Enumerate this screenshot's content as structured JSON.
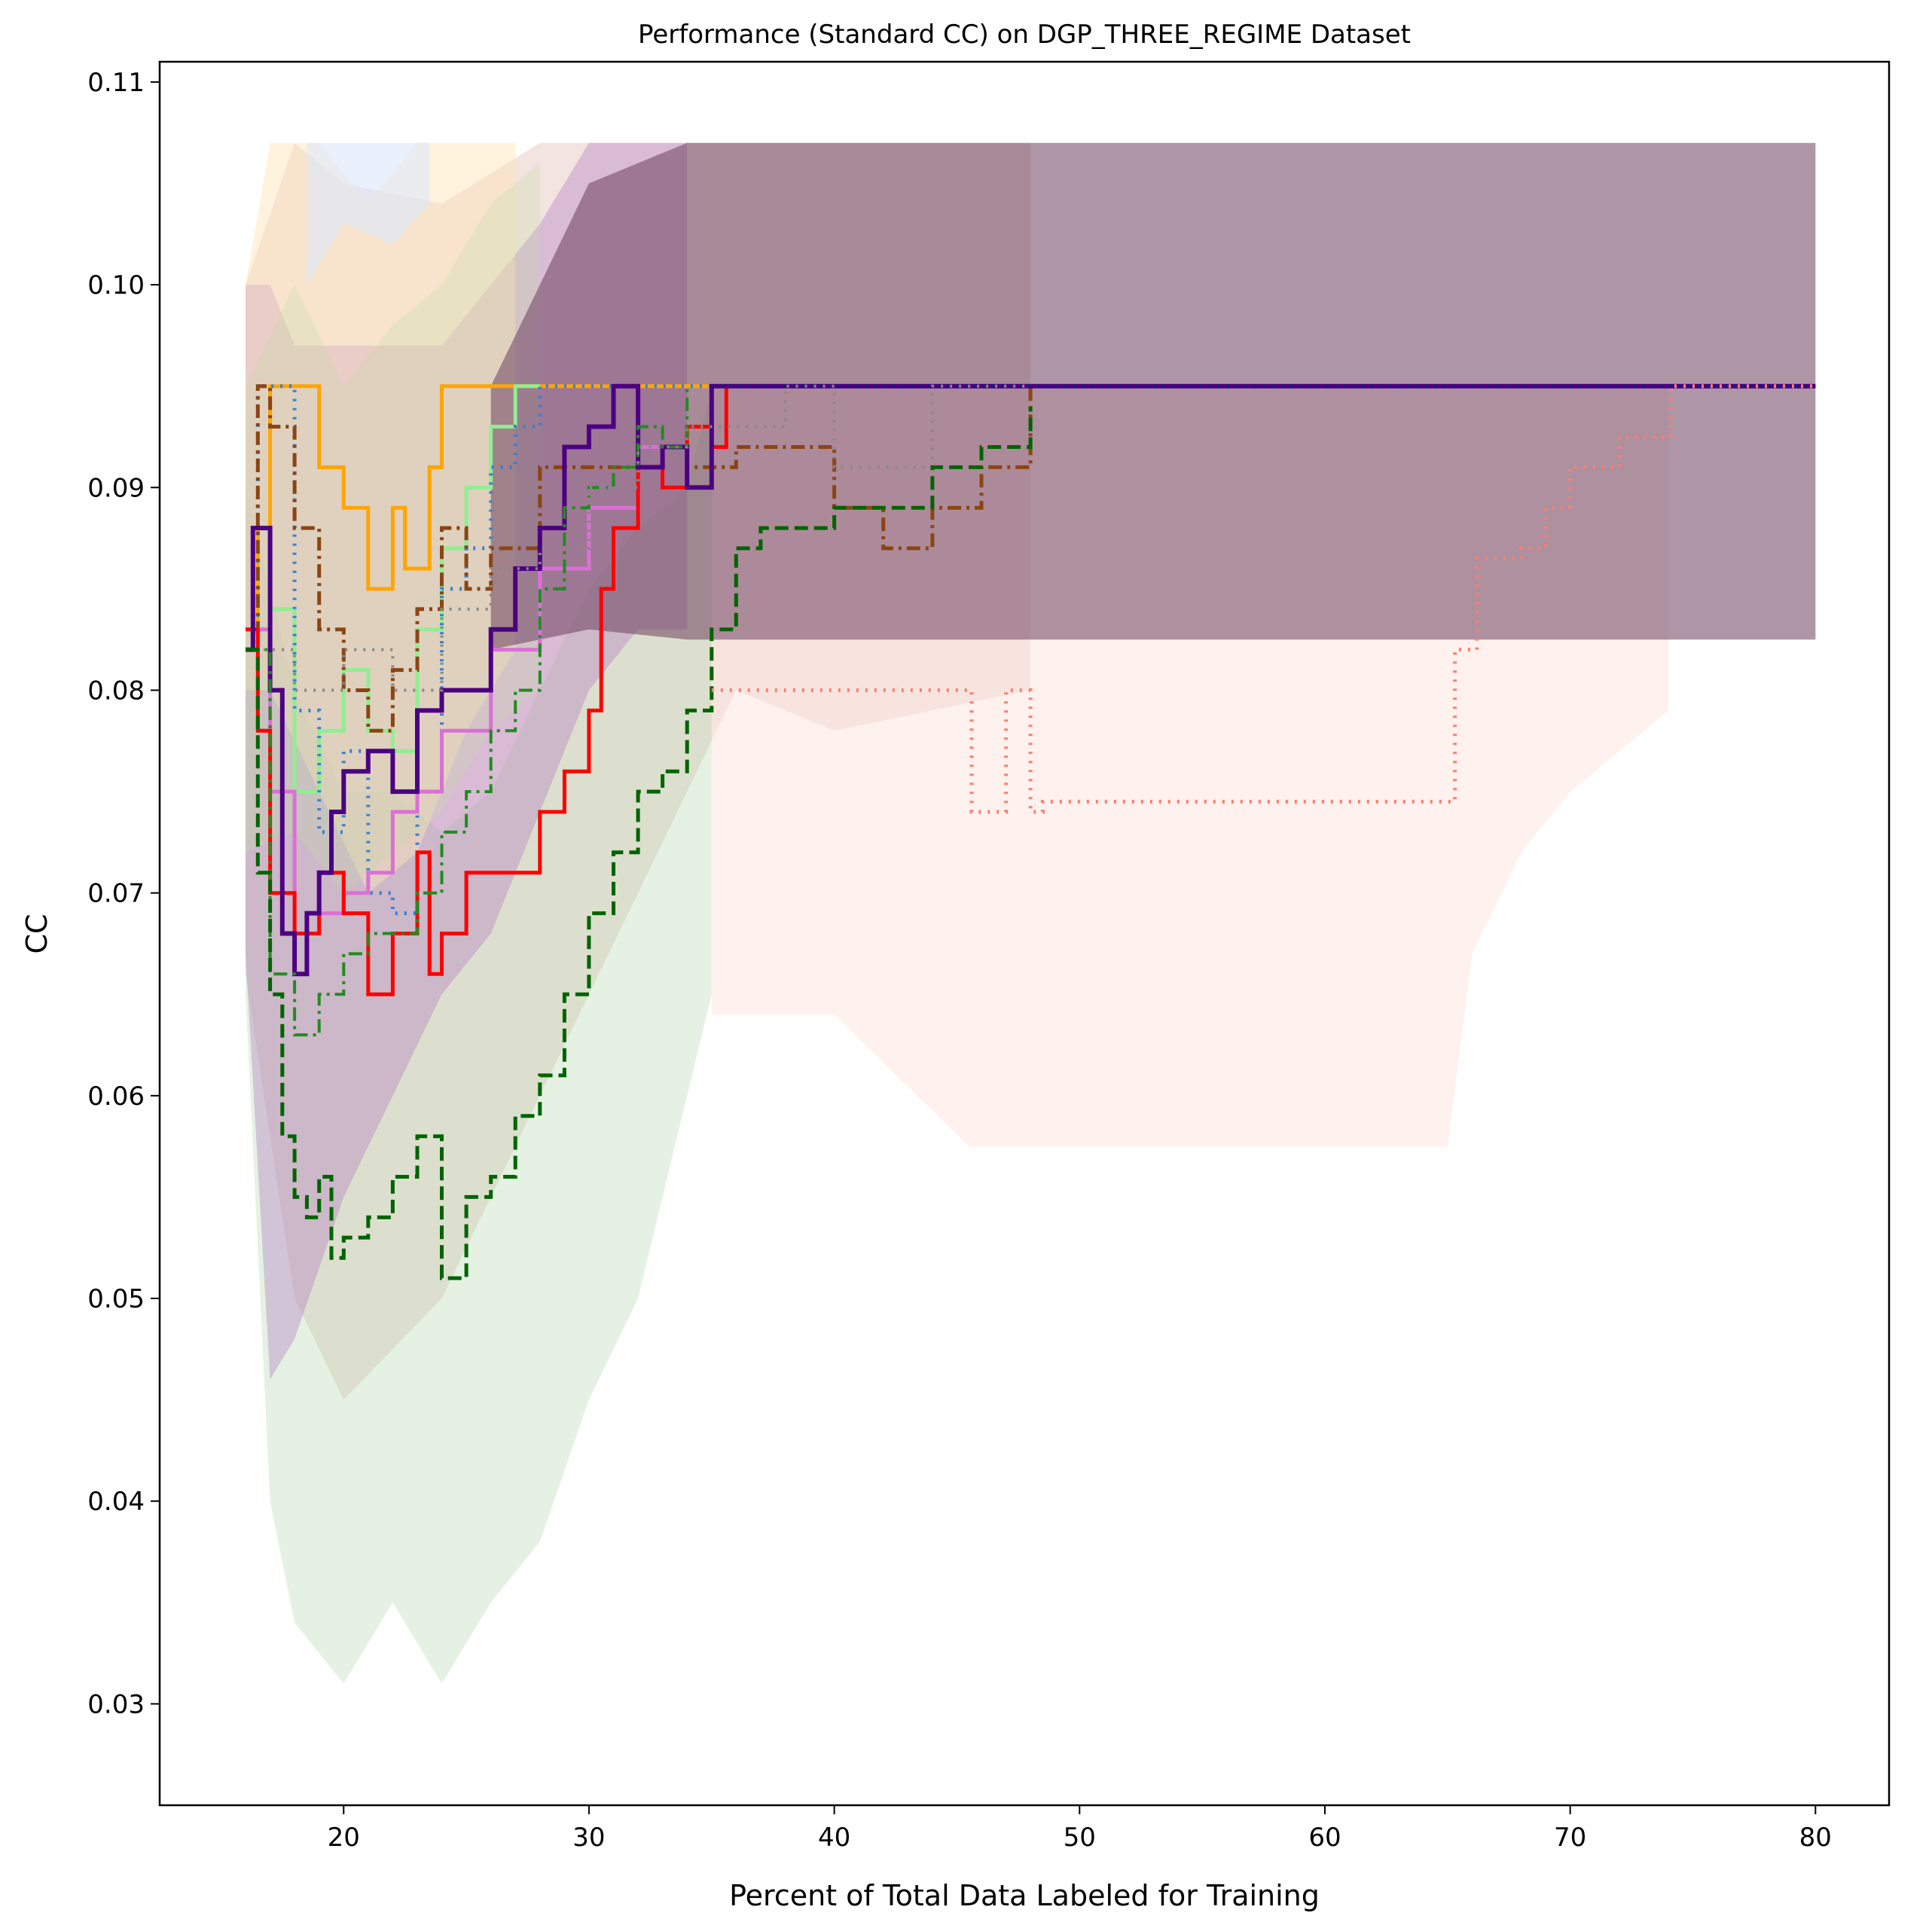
{
  "chart_data": {
    "type": "line",
    "title": "Performance (Standard CC) on DGP_THREE_REGIME Dataset",
    "xlabel": "Percent of Total Data Labeled for Training",
    "ylabel": "CC",
    "xlim": [
      12.5,
      83
    ],
    "ylim": [
      0.025,
      0.111
    ],
    "xticks": [
      20,
      30,
      40,
      50,
      60,
      70,
      80
    ],
    "yticks": [
      0.03,
      0.04,
      0.05,
      0.06,
      0.07,
      0.08,
      0.09,
      0.1,
      0.11
    ],
    "ytick_labels": [
      "0.03",
      "0.04",
      "0.05",
      "0.06",
      "0.07",
      "0.08",
      "0.09",
      "0.10",
      "0.11"
    ],
    "grid": false,
    "legend": "none",
    "bands": [
      {
        "color": "#d9b3a6",
        "opacity": 0.35,
        "x": [
          16,
          18,
          20,
          24,
          28,
          32,
          36,
          40,
          48
        ],
        "upper": [
          0.1,
          0.107,
          0.105,
          0.104,
          0.107,
          0.107,
          0.107,
          0.107,
          0.107
        ],
        "lower": [
          0.066,
          0.05,
          0.045,
          0.05,
          0.06,
          0.07,
          0.08,
          0.078,
          0.08
        ]
      },
      {
        "color": "#a8d5a2",
        "opacity": 0.3,
        "x": [
          16,
          17,
          18,
          20,
          22,
          24,
          26,
          28,
          30,
          32,
          34,
          35
        ],
        "upper": [
          0.09,
          0.085,
          0.08,
          0.075,
          0.075,
          0.073,
          0.075,
          0.08,
          0.085,
          0.088,
          0.09,
          0.095
        ],
        "lower": [
          0.065,
          0.04,
          0.034,
          0.031,
          0.035,
          0.031,
          0.035,
          0.038,
          0.045,
          0.05,
          0.06,
          0.065
        ]
      },
      {
        "color": "#b06fc0",
        "opacity": 0.35,
        "x": [
          16,
          17,
          18,
          20,
          22,
          24,
          26,
          28,
          30,
          32,
          34
        ],
        "upper": [
          0.1,
          0.1,
          0.097,
          0.097,
          0.097,
          0.097,
          0.1,
          0.103,
          0.107,
          0.107,
          0.107
        ],
        "lower": [
          0.067,
          0.046,
          0.048,
          0.055,
          0.06,
          0.065,
          0.068,
          0.074,
          0.08,
          0.083,
          0.083
        ]
      },
      {
        "color": "#ffe4b5",
        "opacity": 0.45,
        "x": [
          16,
          17,
          19,
          21,
          23,
          25,
          27
        ],
        "upper": [
          0.1,
          0.107,
          0.107,
          0.104,
          0.107,
          0.107,
          0.107
        ],
        "lower": [
          0.08,
          0.08,
          0.075,
          0.07,
          0.072,
          0.078,
          0.082
        ]
      },
      {
        "color": "#dce8fc",
        "opacity": 0.6,
        "x": [
          18.5,
          20,
          22,
          23.5
        ],
        "upper": [
          0.107,
          0.107,
          0.107,
          0.107
        ],
        "lower": [
          0.1,
          0.103,
          0.102,
          0.104
        ]
      },
      {
        "color": "#c5d9a8",
        "opacity": 0.3,
        "x": [
          16,
          18,
          20,
          22,
          24,
          26,
          28
        ],
        "upper": [
          0.095,
          0.1,
          0.095,
          0.098,
          0.1,
          0.104,
          0.106
        ],
        "lower": [
          0.072,
          0.073,
          0.07,
          0.072,
          0.074,
          0.078,
          0.08
        ]
      },
      {
        "color": "#fde3de",
        "opacity": 0.5,
        "x": [
          35,
          40,
          45.5,
          48,
          65,
          66,
          68,
          70,
          72,
          74
        ],
        "upper": [
          0.095,
          0.095,
          0.095,
          0.095,
          0.095,
          0.095,
          0.095,
          0.095,
          0.095,
          0.095
        ],
        "lower": [
          0.064,
          0.064,
          0.0575,
          0.0575,
          0.0575,
          0.067,
          0.072,
          0.075,
          0.077,
          0.079
        ]
      },
      {
        "color": "#6e3f5e",
        "opacity": 0.55,
        "x": [
          26,
          30,
          34,
          36,
          80
        ],
        "upper": [
          0.095,
          0.105,
          0.107,
          0.107,
          0.107
        ],
        "lower": [
          0.082,
          0.083,
          0.0825,
          0.0825,
          0.0825
        ]
      }
    ],
    "series": [
      {
        "color": "#ffa500",
        "dash": "solid",
        "width": 5,
        "x": [
          16,
          16.5,
          17,
          18,
          19,
          20,
          21,
          22,
          22.5,
          23.5,
          24,
          26,
          28,
          30,
          32,
          35
        ],
        "y": [
          0.082,
          0.088,
          0.095,
          0.095,
          0.091,
          0.089,
          0.085,
          0.089,
          0.086,
          0.091,
          0.095,
          0.095,
          0.095,
          0.095,
          0.095,
          0.095
        ]
      },
      {
        "color": "#90ee90",
        "dash": "solid",
        "width": 5,
        "x": [
          16,
          17,
          18,
          19,
          20,
          21,
          22,
          23,
          24,
          25,
          26,
          27,
          28
        ],
        "y": [
          0.083,
          0.084,
          0.075,
          0.078,
          0.081,
          0.078,
          0.077,
          0.083,
          0.087,
          0.09,
          0.093,
          0.095,
          0.095
        ]
      },
      {
        "color": "#3a7fd5",
        "dash": "dotted",
        "width": 5,
        "x": [
          16,
          16.5,
          17,
          18,
          19,
          20,
          21,
          22,
          23,
          24,
          25,
          26,
          27,
          28,
          30,
          32,
          80
        ],
        "y": [
          0.082,
          0.095,
          0.095,
          0.079,
          0.073,
          0.077,
          0.07,
          0.069,
          0.075,
          0.085,
          0.087,
          0.091,
          0.093,
          0.095,
          0.095,
          0.095,
          0.095
        ]
      },
      {
        "color": "#8b4513",
        "dash": "dashdot",
        "width": 5,
        "x": [
          16,
          16.5,
          17,
          18,
          19,
          20,
          21,
          22,
          23,
          24,
          25,
          26,
          28,
          30,
          32,
          34,
          36,
          40,
          42,
          44,
          46,
          48
        ],
        "y": [
          0.082,
          0.095,
          0.093,
          0.088,
          0.083,
          0.08,
          0.078,
          0.081,
          0.084,
          0.088,
          0.085,
          0.087,
          0.091,
          0.091,
          0.092,
          0.091,
          0.092,
          0.089,
          0.087,
          0.089,
          0.091,
          0.095
        ]
      },
      {
        "color": "#da70d6",
        "dash": "solid",
        "width": 5,
        "x": [
          16,
          17,
          18,
          19,
          20,
          21,
          22,
          23,
          24,
          26,
          28,
          30,
          32,
          33,
          34,
          35
        ],
        "y": [
          0.083,
          0.075,
          0.068,
          0.069,
          0.07,
          0.071,
          0.074,
          0.075,
          0.078,
          0.082,
          0.086,
          0.089,
          0.092,
          0.09,
          0.093,
          0.095
        ]
      },
      {
        "color": "#ff0000",
        "dash": "solid",
        "width": 5,
        "x": [
          16,
          16.5,
          17,
          18,
          19,
          20,
          21,
          22,
          23,
          23.5,
          24,
          25,
          26,
          27,
          28,
          29,
          30,
          30.5,
          31,
          32,
          33,
          34,
          35,
          35.6
        ],
        "y": [
          0.083,
          0.078,
          0.07,
          0.068,
          0.071,
          0.069,
          0.065,
          0.068,
          0.072,
          0.066,
          0.068,
          0.071,
          0.071,
          0.071,
          0.074,
          0.076,
          0.079,
          0.085,
          0.088,
          0.091,
          0.09,
          0.093,
          0.092,
          0.095
        ]
      },
      {
        "color": "#4b0082",
        "dash": "solid",
        "width": 6,
        "x": [
          16,
          16.3,
          17,
          17.5,
          18,
          18.5,
          19,
          19.5,
          20,
          21,
          22,
          23,
          24,
          25,
          26,
          27,
          28,
          29,
          30,
          31,
          32,
          33,
          34,
          35,
          80
        ],
        "y": [
          0.082,
          0.088,
          0.08,
          0.068,
          0.066,
          0.069,
          0.071,
          0.074,
          0.076,
          0.077,
          0.075,
          0.079,
          0.08,
          0.08,
          0.083,
          0.086,
          0.088,
          0.092,
          0.093,
          0.095,
          0.091,
          0.092,
          0.09,
          0.095,
          0.095
        ]
      },
      {
        "color": "#228b22",
        "dash": "dashdot",
        "width": 4,
        "x": [
          16,
          17,
          18,
          19,
          20,
          21,
          22,
          23,
          24,
          25,
          26,
          27,
          28,
          29,
          30,
          31,
          32,
          33,
          34
        ],
        "y": [
          0.082,
          0.066,
          0.063,
          0.065,
          0.067,
          0.068,
          0.068,
          0.07,
          0.073,
          0.075,
          0.078,
          0.08,
          0.085,
          0.089,
          0.09,
          0.091,
          0.093,
          0.092,
          0.095
        ]
      },
      {
        "color": "#888888",
        "dash": "dotted",
        "width": 4,
        "x": [
          16,
          18,
          20,
          22,
          24,
          26,
          28,
          30,
          32,
          34,
          36,
          38,
          40,
          42,
          44,
          46,
          48
        ],
        "y": [
          0.082,
          0.08,
          0.082,
          0.08,
          0.084,
          0.086,
          0.087,
          0.09,
          0.092,
          0.093,
          0.093,
          0.095,
          0.091,
          0.091,
          0.095,
          0.095,
          0.095
        ]
      },
      {
        "color": "#006400",
        "dash": "dashed",
        "width": 5,
        "x": [
          16,
          16.5,
          17,
          17.5,
          18,
          18.5,
          19,
          19.5,
          20,
          21,
          22,
          23,
          24,
          25,
          26,
          27,
          28,
          29,
          30,
          31,
          32,
          33,
          34,
          35,
          36,
          37,
          38,
          40,
          42,
          44,
          46,
          48
        ],
        "y": [
          0.082,
          0.071,
          0.065,
          0.058,
          0.055,
          0.054,
          0.056,
          0.052,
          0.053,
          0.054,
          0.056,
          0.058,
          0.051,
          0.055,
          0.056,
          0.059,
          0.061,
          0.065,
          0.069,
          0.072,
          0.075,
          0.076,
          0.079,
          0.083,
          0.087,
          0.088,
          0.088,
          0.089,
          0.089,
          0.091,
          0.092,
          0.094
        ]
      },
      {
        "color": "#fa8072",
        "dash": "dotted",
        "width": 5,
        "x": [
          35,
          44,
          45.5,
          45.6,
          47,
          48,
          48.5,
          60,
          64.5,
          65,
          65.3,
          66.2,
          67,
          68,
          69,
          70,
          72,
          74,
          74.1,
          80
        ],
        "y": [
          0.08,
          0.08,
          0.08,
          0.074,
          0.08,
          0.074,
          0.0745,
          0.0745,
          0.0745,
          0.0745,
          0.082,
          0.0865,
          0.0865,
          0.087,
          0.089,
          0.091,
          0.0925,
          0.0925,
          0.095,
          0.095
        ]
      },
      {
        "color": "#1a1a7a",
        "dash": "dotted",
        "width": 5,
        "x": [
          35,
          80
        ],
        "y": [
          0.095,
          0.095
        ]
      }
    ]
  }
}
